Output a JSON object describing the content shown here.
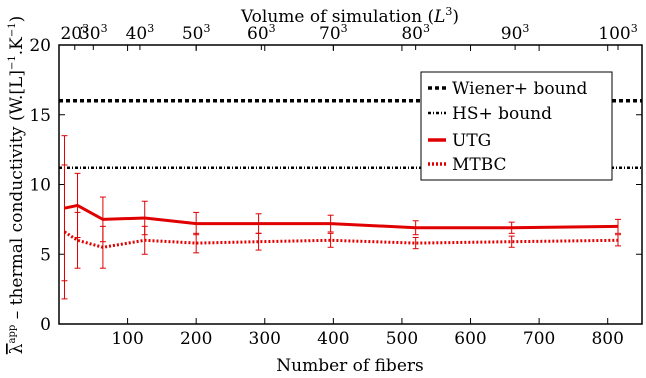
{
  "chart_data": {
    "type": "line",
    "xlabel": "Number of fibers",
    "ylabel": "λ̄app − thermal conductivity (W.[L]−1.K−1)",
    "ylabel_parts": {
      "symbol": "λ",
      "superscript": "app",
      "text": " – thermal conductivity (W.[L]",
      "exp1": "−1",
      "mid": ".K",
      "exp2": "−1",
      "end": ")"
    },
    "top_xlabel": "Volume of simulation (L³)",
    "top_xlabel_parts": {
      "text": "Volume of simulation (",
      "var": "L",
      "exp": "3",
      "end": ")"
    },
    "xlim": [
      0,
      850
    ],
    "ylim": [
      0,
      20
    ],
    "xticks": [
      100,
      200,
      300,
      400,
      500,
      600,
      700,
      800
    ],
    "yticks": [
      0,
      5,
      10,
      15,
      20
    ],
    "top_ticks": [
      {
        "x": 23,
        "base": "20",
        "exp": "3"
      },
      {
        "x": 50,
        "base": "30",
        "exp": "3"
      },
      {
        "x": 118,
        "base": "40",
        "exp": "3"
      },
      {
        "x": 200,
        "base": "50",
        "exp": "3"
      },
      {
        "x": 295,
        "base": "60",
        "exp": "3"
      },
      {
        "x": 400,
        "base": "70",
        "exp": "3"
      },
      {
        "x": 520,
        "base": "80",
        "exp": "3"
      },
      {
        "x": 665,
        "base": "90",
        "exp": "3"
      },
      {
        "x": 815,
        "base": "100",
        "exp": "3"
      }
    ],
    "legend_position": "top-right",
    "series": [
      {
        "name": "Wiener+ bound",
        "style": "dashed-thick",
        "color": "#000000",
        "x": [
          0,
          850
        ],
        "y": [
          16.0,
          16.0
        ]
      },
      {
        "name": "HS+ bound",
        "style": "dashdot",
        "color": "#000000",
        "x": [
          0,
          850
        ],
        "y": [
          11.2,
          11.2
        ]
      },
      {
        "name": "UTG",
        "style": "solid",
        "color": "#e00000",
        "x": [
          8,
          27,
          64,
          125,
          200,
          291,
          396,
          520,
          660,
          815
        ],
        "y": [
          8.3,
          8.5,
          7.5,
          7.6,
          7.2,
          7.2,
          7.2,
          6.9,
          6.9,
          7.0
        ],
        "err": [
          5.2,
          2.3,
          1.6,
          1.2,
          0.8,
          0.7,
          0.6,
          0.5,
          0.4,
          0.5
        ]
      },
      {
        "name": "MTBC",
        "style": "dotted",
        "color": "#e00000",
        "x": [
          8,
          27,
          64,
          125,
          200,
          291,
          396,
          520,
          660,
          815
        ],
        "y": [
          6.6,
          6.0,
          5.5,
          6.0,
          5.8,
          5.9,
          6.0,
          5.8,
          5.9,
          6.0
        ],
        "err": [
          4.8,
          2.0,
          1.5,
          1.0,
          0.7,
          0.6,
          0.5,
          0.4,
          0.4,
          0.4
        ]
      }
    ]
  }
}
